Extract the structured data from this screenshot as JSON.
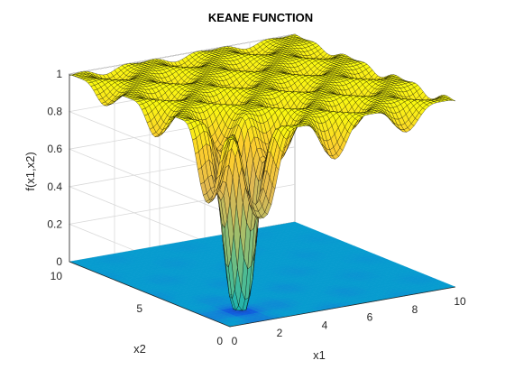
{
  "chart_data": {
    "type": "surface",
    "title": "KEANE FUNCTION",
    "xlabel": "x1",
    "ylabel": "x2",
    "zlabel": "f(x1,x2)",
    "x_range": [
      0,
      10
    ],
    "y_range": [
      0,
      10
    ],
    "z_range": [
      0,
      1
    ],
    "x_ticks": [
      "0",
      "2",
      "4",
      "6",
      "8",
      "10"
    ],
    "y_ticks": [
      "0",
      "5",
      "10"
    ],
    "z_ticks": [
      "0",
      "0.2",
      "0.4",
      "0.6",
      "0.8",
      "1"
    ],
    "grid": true,
    "surface_peak_value": 1,
    "deep_minima": [
      {
        "x1": 1.4,
        "x2": 1.6,
        "f": 0.0
      },
      {
        "x1": 1.6,
        "x2": 1.4,
        "f": 0.0
      }
    ],
    "contour_projection": "filled contour map of f drawn on the z = 0 floor",
    "colormap": "parula",
    "colors": {
      "high": "#f9fb0e",
      "mid": "#ea8b3c",
      "low": "#5cbd6a",
      "floor": "#2fb0e8",
      "floor_dark": "#2c2cd8",
      "mesh": "#000000",
      "axes": "#262626",
      "grid": "#d9d9d9"
    }
  }
}
